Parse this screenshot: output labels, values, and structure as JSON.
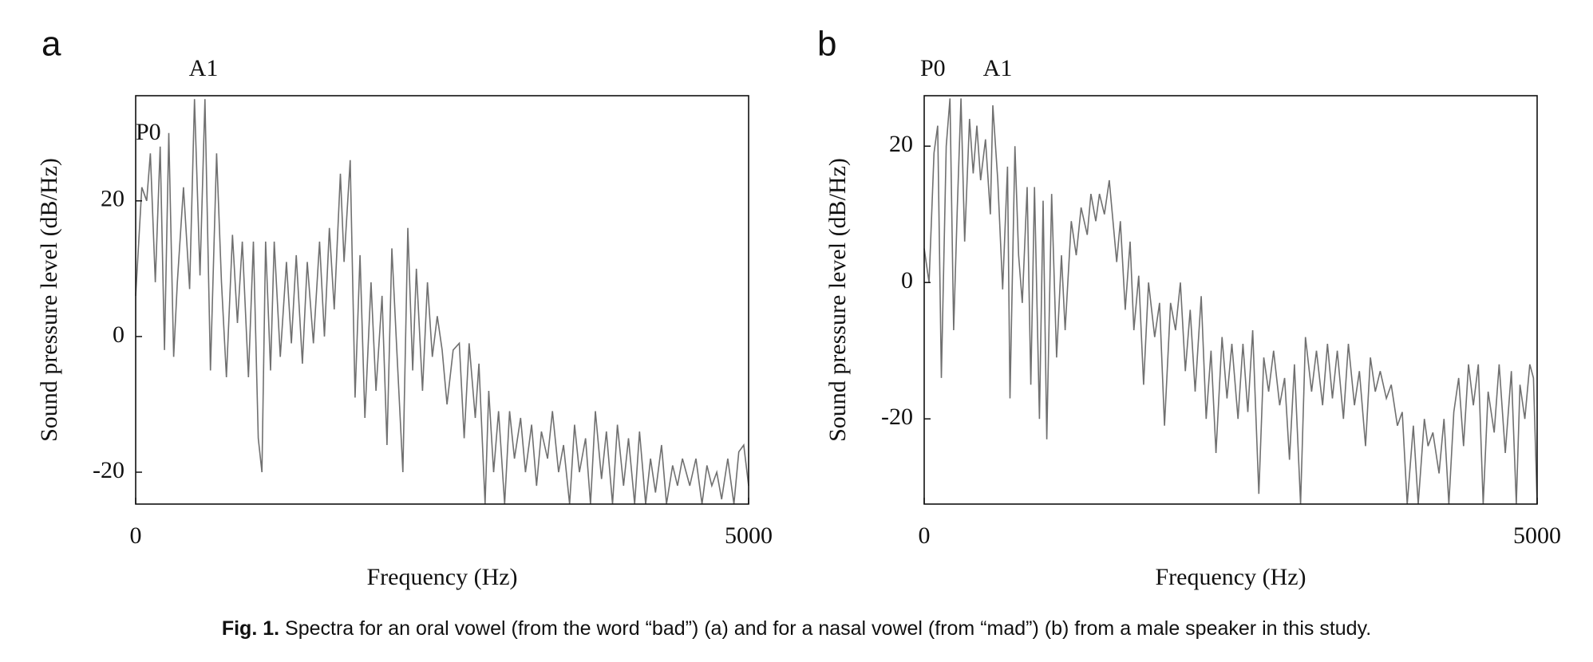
{
  "chart_data": [
    {
      "type": "line",
      "panel": "a",
      "annotations": [
        "P0",
        "A1"
      ],
      "x_label": "Frequency (Hz)",
      "y_label": "Sound pressure level (dB/Hz)",
      "xlim": [
        0,
        5000
      ],
      "xticks": [
        0,
        5000
      ],
      "ylim": [
        -24.7,
        35.5
      ],
      "yticks": [
        -20,
        0,
        20
      ],
      "color": "#707070",
      "x": [
        0,
        50,
        90,
        120,
        160,
        200,
        235,
        270,
        310,
        340,
        390,
        440,
        480,
        525,
        565,
        610,
        660,
        700,
        740,
        790,
        830,
        870,
        920,
        960,
        1000,
        1030,
        1060,
        1100,
        1130,
        1180,
        1230,
        1270,
        1310,
        1360,
        1400,
        1450,
        1500,
        1540,
        1580,
        1620,
        1670,
        1700,
        1750,
        1790,
        1830,
        1870,
        1920,
        1960,
        2010,
        2050,
        2090,
        2130,
        2180,
        2220,
        2260,
        2290,
        2340,
        2380,
        2420,
        2460,
        2500,
        2540,
        2590,
        2640,
        2680,
        2720,
        2770,
        2800,
        2850,
        2880,
        2920,
        2960,
        3010,
        3050,
        3090,
        3140,
        3180,
        3230,
        3270,
        3310,
        3360,
        3400,
        3450,
        3490,
        3540,
        3580,
        3620,
        3670,
        3710,
        3750,
        3800,
        3840,
        3890,
        3930,
        3980,
        4020,
        4070,
        4110,
        4160,
        4200,
        4240,
        4290,
        4330,
        4380,
        4420,
        4460,
        4520,
        4570,
        4620,
        4660,
        4700,
        4740,
        4780,
        4830,
        4880,
        4920,
        4960,
        5000
      ],
      "values": [
        6,
        22,
        20,
        27,
        8,
        28,
        -2,
        30,
        -3,
        8,
        22,
        7,
        35,
        9,
        35,
        -5,
        27,
        8,
        -6,
        15,
        2,
        14,
        -6,
        14,
        -15,
        -20,
        14,
        -5,
        14,
        -3,
        11,
        -1,
        12,
        -4,
        11,
        -1,
        14,
        0,
        16,
        4,
        24,
        11,
        26,
        -9,
        12,
        -12,
        8,
        -8,
        6,
        -16,
        13,
        -2,
        -20,
        16,
        -5,
        10,
        -8,
        8,
        -3,
        3,
        -2,
        -10,
        -2,
        -1,
        -15,
        -1,
        -12,
        -4,
        -24.7,
        -8,
        -20,
        -11,
        -24.7,
        -11,
        -18,
        -12,
        -20,
        -13,
        -22,
        -14,
        -18,
        -11,
        -20,
        -16,
        -24.7,
        -13,
        -20,
        -15,
        -24.7,
        -11,
        -21,
        -14,
        -24.7,
        -13,
        -22,
        -15,
        -24.7,
        -14,
        -24.7,
        -18,
        -23,
        -16,
        -24.7,
        -19,
        -22,
        -18,
        -22,
        -18,
        -24.7,
        -19,
        -22,
        -20,
        -24,
        -18,
        -24.7,
        -17,
        -16,
        -22
      ]
    },
    {
      "type": "line",
      "panel": "b",
      "annotations": [
        "P0",
        "A1"
      ],
      "x_label": "Frequency (Hz)",
      "y_label": "Sound pressure level (dB/Hz)",
      "xlim": [
        0,
        5000
      ],
      "xticks": [
        0,
        5000
      ],
      "ylim": [
        -32.5,
        27.4
      ],
      "yticks": [
        -20,
        0,
        20
      ],
      "color": "#707070",
      "x": [
        0,
        40,
        80,
        110,
        140,
        180,
        210,
        240,
        270,
        300,
        330,
        370,
        400,
        430,
        460,
        500,
        540,
        560,
        600,
        640,
        680,
        700,
        740,
        770,
        800,
        840,
        870,
        900,
        940,
        970,
        1000,
        1040,
        1080,
        1120,
        1150,
        1200,
        1240,
        1280,
        1330,
        1360,
        1400,
        1430,
        1470,
        1510,
        1570,
        1600,
        1640,
        1680,
        1710,
        1750,
        1790,
        1830,
        1880,
        1920,
        1960,
        2010,
        2050,
        2090,
        2130,
        2170,
        2210,
        2260,
        2300,
        2340,
        2380,
        2430,
        2470,
        2510,
        2560,
        2600,
        2640,
        2680,
        2730,
        2770,
        2810,
        2850,
        2900,
        2940,
        2980,
        3020,
        3070,
        3110,
        3160,
        3200,
        3250,
        3290,
        3330,
        3370,
        3420,
        3460,
        3510,
        3550,
        3600,
        3640,
        3680,
        3720,
        3770,
        3810,
        3860,
        3900,
        3940,
        3990,
        4030,
        4080,
        4110,
        4150,
        4200,
        4240,
        4280,
        4320,
        4360,
        4400,
        4440,
        4480,
        4520,
        4560,
        4600,
        4650,
        4690,
        4740,
        4790,
        4830,
        4860,
        4900,
        4940,
        4970,
        5000
      ],
      "values": [
        5,
        0,
        19,
        23,
        -14,
        20,
        27,
        -7,
        11,
        27,
        6,
        24,
        16,
        23,
        15,
        21,
        10,
        26,
        15,
        -1,
        17,
        -17,
        20,
        4,
        -3,
        14,
        -15,
        14,
        -20,
        12,
        -23,
        13,
        -11,
        4,
        -7,
        9,
        4,
        11,
        7,
        13,
        9,
        13,
        10,
        15,
        3,
        9,
        -4,
        6,
        -7,
        1,
        -15,
        0,
        -8,
        -3,
        -21,
        -3,
        -7,
        0,
        -13,
        -4,
        -16,
        -2,
        -20,
        -10,
        -25,
        -8,
        -17,
        -9,
        -20,
        -9,
        -19,
        -7,
        -31,
        -11,
        -16,
        -10,
        -18,
        -14,
        -26,
        -12,
        -32.5,
        -8,
        -16,
        -10,
        -18,
        -9,
        -17,
        -10,
        -20,
        -9,
        -18,
        -13,
        -24,
        -11,
        -16,
        -13,
        -17,
        -15,
        -21,
        -19,
        -32.5,
        -21,
        -32.5,
        -20,
        -24,
        -22,
        -28,
        -20,
        -32.5,
        -19,
        -14,
        -24,
        -12,
        -18,
        -12,
        -32.5,
        -16,
        -22,
        -12,
        -25,
        -13,
        -32.5,
        -15,
        -20,
        -12,
        -14,
        -32.5
      ]
    }
  ],
  "caption": {
    "label": "Fig. 1.",
    "text": "Spectra for an oral vowel (from the word “bad”) (a) and for a nasal vowel (from “mad”) (b) from a male speaker in this study."
  }
}
